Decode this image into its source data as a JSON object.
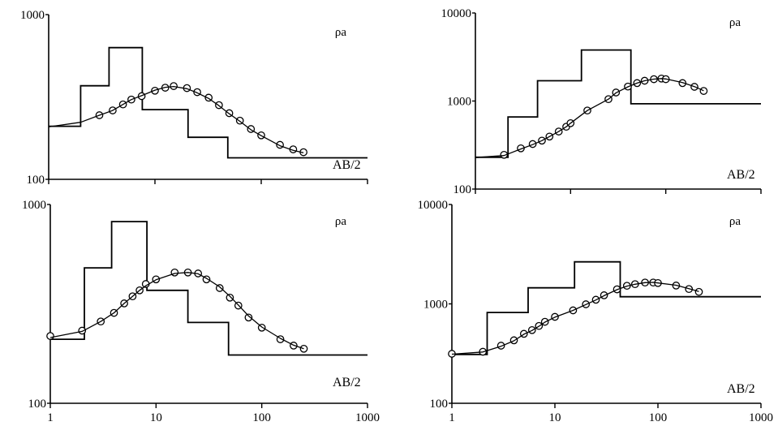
{
  "chart_data": [
    {
      "type": "line",
      "panel": "top-left",
      "x_scale": "log",
      "y_scale": "log",
      "xlim": [
        1,
        1000
      ],
      "ylim": [
        100,
        1000
      ],
      "y_ticks": [
        "100",
        "1000"
      ],
      "x_ticks": [],
      "ylabel": "ρa",
      "xlabel": "AB/2",
      "series": [
        {
          "kind": "layer-model",
          "x": [
            1,
            2,
            2,
            3.7,
            3.7,
            7.6,
            7.6,
            20.5,
            20.5,
            48.5,
            48.5,
            1000
          ],
          "y": [
            210,
            210,
            370,
            370,
            630,
            630,
            265,
            265,
            180,
            180,
            135,
            135
          ]
        },
        {
          "kind": "measured",
          "x": [
            3,
            4,
            5,
            6,
            7.5,
            10,
            12.5,
            15,
            20,
            25,
            32,
            40,
            50,
            63,
            80,
            100,
            150,
            200,
            250
          ],
          "y": [
            245,
            262,
            285,
            305,
            320,
            345,
            360,
            368,
            358,
            338,
            313,
            282,
            252,
            227,
            202,
            185,
            162,
            152,
            146
          ]
        },
        {
          "kind": "fitted",
          "x": [
            1,
            2,
            3,
            4,
            5,
            6,
            7.5,
            10,
            12.5,
            15,
            20,
            25,
            32,
            40,
            50,
            63,
            80,
            100,
            150,
            200,
            250
          ],
          "y": [
            208,
            222,
            245,
            262,
            285,
            305,
            322,
            348,
            362,
            366,
            355,
            335,
            310,
            280,
            250,
            225,
            200,
            184,
            160,
            150,
            145
          ]
        }
      ]
    },
    {
      "type": "line",
      "panel": "top-right",
      "x_scale": "log",
      "y_scale": "log",
      "xlim": [
        1,
        1000
      ],
      "ylim": [
        100,
        10000
      ],
      "y_ticks": [
        "100",
        "1000",
        "10000"
      ],
      "x_ticks": [],
      "ylabel": "ρa",
      "xlabel": "AB/2",
      "series": [
        {
          "kind": "layer-model",
          "x": [
            1,
            2.2,
            2.2,
            4.5,
            4.5,
            13,
            13,
            43,
            43,
            1000
          ],
          "y": [
            230,
            230,
            660,
            660,
            1700,
            1700,
            3800,
            3800,
            930,
            930
          ]
        },
        {
          "kind": "measured",
          "x": [
            2,
            3,
            4,
            5,
            6,
            7.5,
            9,
            10,
            15,
            25,
            30,
            40,
            50,
            60,
            75,
            90,
            100,
            150,
            200,
            250
          ],
          "y": [
            245,
            290,
            325,
            355,
            395,
            450,
            510,
            560,
            780,
            1050,
            1250,
            1460,
            1600,
            1700,
            1770,
            1800,
            1770,
            1600,
            1450,
            1300
          ]
        },
        {
          "kind": "fitted",
          "x": [
            1,
            2,
            3,
            4,
            5,
            6,
            7.5,
            9,
            10,
            15,
            25,
            30,
            40,
            50,
            60,
            75,
            90,
            100,
            150,
            200,
            250
          ],
          "y": [
            228,
            240,
            285,
            320,
            355,
            395,
            450,
            510,
            560,
            780,
            1050,
            1240,
            1450,
            1600,
            1700,
            1775,
            1800,
            1780,
            1620,
            1460,
            1310
          ]
        }
      ]
    },
    {
      "type": "line",
      "panel": "bottom-left",
      "x_scale": "log",
      "y_scale": "log",
      "xlim": [
        1,
        1000
      ],
      "ylim": [
        100,
        1000
      ],
      "y_ticks": [
        "100",
        "1000"
      ],
      "x_ticks": [
        "1",
        "10",
        "100",
        "1000"
      ],
      "ylabel": "ρa",
      "xlabel": "AB/2",
      "series": [
        {
          "kind": "layer-model",
          "x": [
            1,
            2.1,
            2.1,
            3.8,
            3.8,
            8.2,
            8.2,
            20,
            20,
            48.5,
            48.5,
            1000
          ],
          "y": [
            210,
            210,
            480,
            480,
            820,
            820,
            370,
            370,
            255,
            255,
            175,
            175
          ]
        },
        {
          "kind": "measured",
          "x": [
            1,
            2,
            3,
            4,
            5,
            6,
            7,
            8,
            10,
            15,
            20,
            25,
            30,
            40,
            50,
            60,
            75,
            100,
            150,
            200,
            250
          ],
          "y": [
            218,
            232,
            258,
            285,
            318,
            345,
            370,
            398,
            420,
            455,
            455,
            450,
            420,
            380,
            340,
            310,
            270,
            240,
            210,
            195,
            188
          ]
        },
        {
          "kind": "fitted",
          "x": [
            1,
            2,
            3,
            4,
            5,
            6,
            7,
            8,
            10,
            15,
            20,
            25,
            30,
            40,
            50,
            60,
            75,
            100,
            150,
            200,
            250
          ],
          "y": [
            214,
            230,
            258,
            285,
            318,
            345,
            370,
            390,
            418,
            450,
            455,
            448,
            425,
            385,
            345,
            312,
            275,
            242,
            212,
            196,
            188
          ]
        }
      ]
    },
    {
      "type": "line",
      "panel": "bottom-right",
      "x_scale": "log",
      "y_scale": "log",
      "xlim": [
        1,
        1000
      ],
      "ylim": [
        100,
        10000
      ],
      "y_ticks": [
        "100",
        "1000",
        "10000"
      ],
      "x_ticks": [
        "1",
        "10",
        "100",
        "1000"
      ],
      "ylabel": "ρa",
      "xlabel": "AB/2",
      "series": [
        {
          "kind": "layer-model",
          "x": [
            1,
            2.2,
            2.2,
            5.5,
            5.5,
            15.5,
            15.5,
            43,
            43,
            1000
          ],
          "y": [
            310,
            310,
            820,
            820,
            1450,
            1450,
            2650,
            2650,
            1180,
            1180
          ]
        },
        {
          "kind": "measured",
          "x": [
            1,
            2,
            3,
            4,
            5,
            6,
            7,
            8,
            10,
            15,
            20,
            25,
            30,
            40,
            50,
            60,
            75,
            90,
            100,
            150,
            200,
            250
          ],
          "y": [
            315,
            330,
            380,
            430,
            500,
            545,
            600,
            660,
            740,
            860,
            990,
            1100,
            1220,
            1400,
            1520,
            1580,
            1640,
            1640,
            1620,
            1530,
            1410,
            1320
          ]
        },
        {
          "kind": "fitted",
          "x": [
            1,
            2,
            3,
            4,
            5,
            6,
            7,
            8,
            10,
            15,
            20,
            25,
            30,
            40,
            50,
            60,
            75,
            90,
            100,
            150,
            200,
            250
          ],
          "y": [
            312,
            328,
            375,
            425,
            495,
            540,
            595,
            655,
            735,
            860,
            985,
            1095,
            1210,
            1390,
            1510,
            1575,
            1635,
            1645,
            1625,
            1540,
            1420,
            1330
          ]
        }
      ]
    }
  ]
}
